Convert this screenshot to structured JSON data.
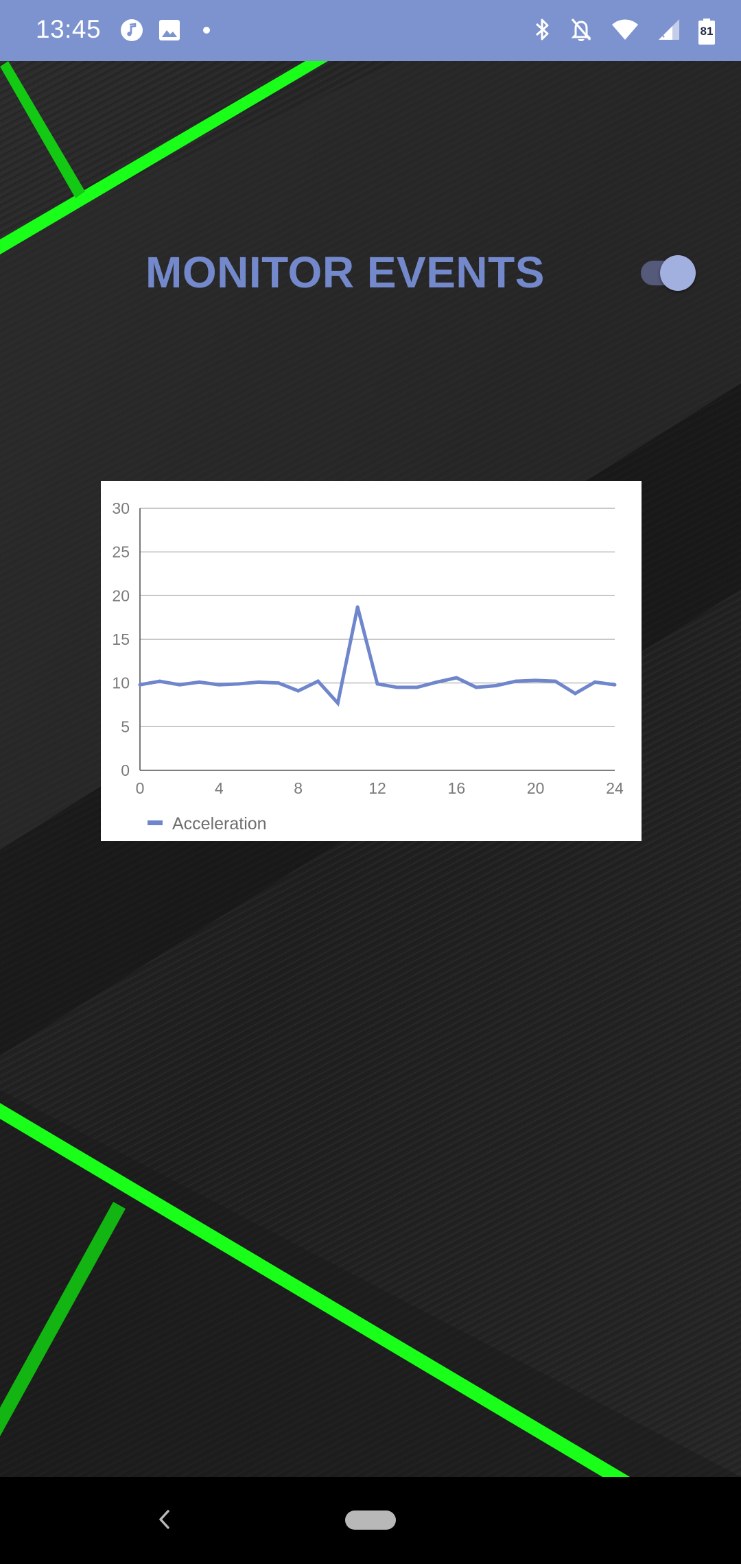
{
  "status_bar": {
    "time": "13:45",
    "battery_level": "81",
    "left_icons": [
      "music-note-icon",
      "image-icon",
      "dot-icon"
    ],
    "right_icons": [
      "bluetooth-icon",
      "notifications-off-icon",
      "wifi-icon",
      "signal-icon",
      "battery-icon"
    ]
  },
  "header": {
    "title": "MONITOR EVENTS",
    "toggle_on": true
  },
  "colors": {
    "status_bar": "#7c93cf",
    "accent": "#7389cc",
    "series": "#6f86cc",
    "wallpaper_stripe": "#1aff1a",
    "wallpaper_base": "#222222"
  },
  "chart_data": {
    "type": "line",
    "x": [
      0,
      1,
      2,
      3,
      4,
      5,
      6,
      7,
      8,
      9,
      10,
      11,
      12,
      13,
      14,
      15,
      16,
      17,
      18,
      19,
      20,
      21,
      22,
      23,
      24
    ],
    "series": [
      {
        "name": "Acceleration",
        "values": [
          9.8,
          10.2,
          9.8,
          10.1,
          9.8,
          9.9,
          10.1,
          10.0,
          9.1,
          10.2,
          7.7,
          18.7,
          9.9,
          9.5,
          9.5,
          10.1,
          10.6,
          9.5,
          9.7,
          10.2,
          10.3,
          10.2,
          8.8,
          10.1,
          9.8
        ]
      }
    ],
    "x_ticks": [
      "0",
      "4",
      "8",
      "12",
      "16",
      "20",
      "24"
    ],
    "y_ticks": [
      "0",
      "5",
      "10",
      "15",
      "20",
      "25",
      "30"
    ],
    "xlim": [
      0,
      24
    ],
    "ylim": [
      0,
      30
    ],
    "grid": true,
    "legend_position": "bottom-left"
  },
  "nav": {
    "back_icon": "chevron-left-icon",
    "home_icon": "home-pill-icon"
  }
}
